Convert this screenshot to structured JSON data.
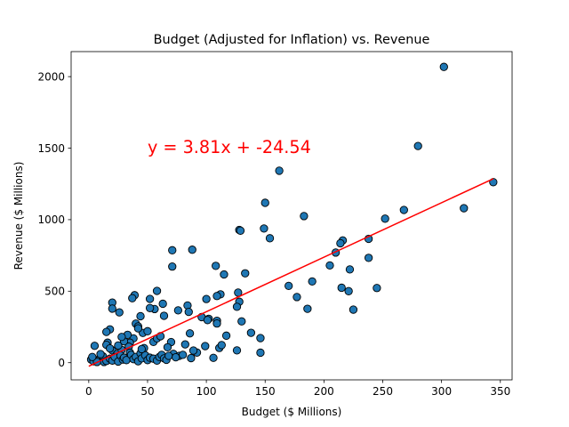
{
  "chart_data": {
    "type": "scatter",
    "title": "Budget (Adjusted for Inflation) vs. Revenue",
    "xlabel": "Budget ($ Millions)",
    "ylabel": "Revenue ($ Millions)",
    "xlim": [
      -15,
      360
    ],
    "ylim": [
      -120,
      2175
    ],
    "xticks": [
      0,
      50,
      100,
      150,
      200,
      250,
      300,
      350
    ],
    "yticks": [
      0,
      500,
      1000,
      1500,
      2000
    ],
    "grid": false,
    "point_color": "#1f77b4",
    "point_edge_color": "#000000",
    "regression": {
      "slope": 3.81,
      "intercept": -24.54,
      "x_range": [
        0,
        344
      ],
      "color": "#ff0000",
      "equation_label": "y = 3.81x + -24.54",
      "label_x": 50,
      "label_y": 1510
    },
    "points": [
      [
        302,
        2068
      ],
      [
        280,
        1515
      ],
      [
        344,
        1262
      ],
      [
        319,
        1080
      ],
      [
        268,
        1068
      ],
      [
        252,
        1007
      ],
      [
        162,
        1342
      ],
      [
        183,
        1025
      ],
      [
        150,
        1118
      ],
      [
        154,
        870
      ],
      [
        149,
        938
      ],
      [
        128,
        928
      ],
      [
        129,
        923
      ],
      [
        216,
        855
      ],
      [
        214,
        835
      ],
      [
        210,
        770
      ],
      [
        238,
        866
      ],
      [
        238,
        733
      ],
      [
        205,
        680
      ],
      [
        222,
        652
      ],
      [
        108,
        677
      ],
      [
        88,
        790
      ],
      [
        71,
        786
      ],
      [
        71,
        672
      ],
      [
        133,
        625
      ],
      [
        115,
        617
      ],
      [
        127,
        490
      ],
      [
        128,
        426
      ],
      [
        126,
        391
      ],
      [
        170,
        537
      ],
      [
        190,
        568
      ],
      [
        177,
        459
      ],
      [
        186,
        377
      ],
      [
        215,
        524
      ],
      [
        221,
        500
      ],
      [
        245,
        522
      ],
      [
        225,
        371
      ],
      [
        112,
        478
      ],
      [
        109,
        466
      ],
      [
        100,
        445
      ],
      [
        102,
        307
      ],
      [
        96,
        319
      ],
      [
        109,
        293
      ],
      [
        109,
        274
      ],
      [
        130,
        289
      ],
      [
        138,
        209
      ],
      [
        146,
        172
      ],
      [
        84,
        400
      ],
      [
        85,
        355
      ],
      [
        76,
        366
      ],
      [
        63,
        412
      ],
      [
        64,
        328
      ],
      [
        58,
        502
      ],
      [
        56,
        375
      ],
      [
        52,
        446
      ],
      [
        52,
        382
      ],
      [
        39,
        472
      ],
      [
        37,
        451
      ],
      [
        44,
        325
      ],
      [
        40,
        273
      ],
      [
        42,
        254
      ],
      [
        46,
        208
      ],
      [
        38,
        170
      ],
      [
        35,
        140
      ],
      [
        20,
        420
      ],
      [
        20,
        378
      ],
      [
        26,
        352
      ],
      [
        18,
        233
      ],
      [
        15,
        215
      ],
      [
        16,
        140
      ],
      [
        15,
        125
      ],
      [
        20,
        86
      ],
      [
        24,
        60
      ],
      [
        28,
        90
      ],
      [
        34,
        112
      ],
      [
        47,
        102
      ],
      [
        55,
        145
      ],
      [
        58,
        170
      ],
      [
        61,
        185
      ],
      [
        70,
        144
      ],
      [
        67,
        108
      ],
      [
        72,
        62
      ],
      [
        77,
        48
      ],
      [
        80,
        55
      ],
      [
        86,
        205
      ],
      [
        92,
        71
      ],
      [
        99,
        116
      ],
      [
        101,
        298
      ],
      [
        106,
        34
      ],
      [
        111,
        103
      ],
      [
        113,
        123
      ],
      [
        117,
        189
      ],
      [
        126,
        86
      ],
      [
        146,
        70
      ],
      [
        5,
        118
      ],
      [
        2,
        22
      ],
      [
        4,
        10
      ],
      [
        8,
        20
      ],
      [
        10,
        35
      ],
      [
        12,
        45
      ],
      [
        13,
        5
      ],
      [
        15,
        12
      ],
      [
        18,
        28
      ],
      [
        20,
        15
      ],
      [
        22,
        40
      ],
      [
        25,
        8
      ],
      [
        27,
        50
      ],
      [
        29,
        22
      ],
      [
        30,
        35
      ],
      [
        32,
        18
      ],
      [
        35,
        70
      ],
      [
        36,
        55
      ],
      [
        38,
        25
      ],
      [
        40,
        40
      ],
      [
        42,
        10
      ],
      [
        44,
        65
      ],
      [
        45,
        30
      ],
      [
        48,
        52
      ],
      [
        50,
        18
      ],
      [
        52,
        35
      ],
      [
        55,
        28
      ],
      [
        58,
        15
      ],
      [
        60,
        40
      ],
      [
        62,
        55
      ],
      [
        64,
        30
      ],
      [
        66,
        20
      ],
      [
        68,
        48
      ],
      [
        74,
        38
      ],
      [
        82,
        128
      ],
      [
        87,
        32
      ],
      [
        89,
        85
      ],
      [
        45,
        95
      ],
      [
        30,
        150
      ],
      [
        25,
        120
      ],
      [
        18,
        100
      ],
      [
        10,
        60
      ],
      [
        7,
        5
      ],
      [
        3,
        40
      ],
      [
        33,
        195
      ],
      [
        28,
        180
      ],
      [
        42,
        240
      ],
      [
        50,
        220
      ]
    ]
  }
}
